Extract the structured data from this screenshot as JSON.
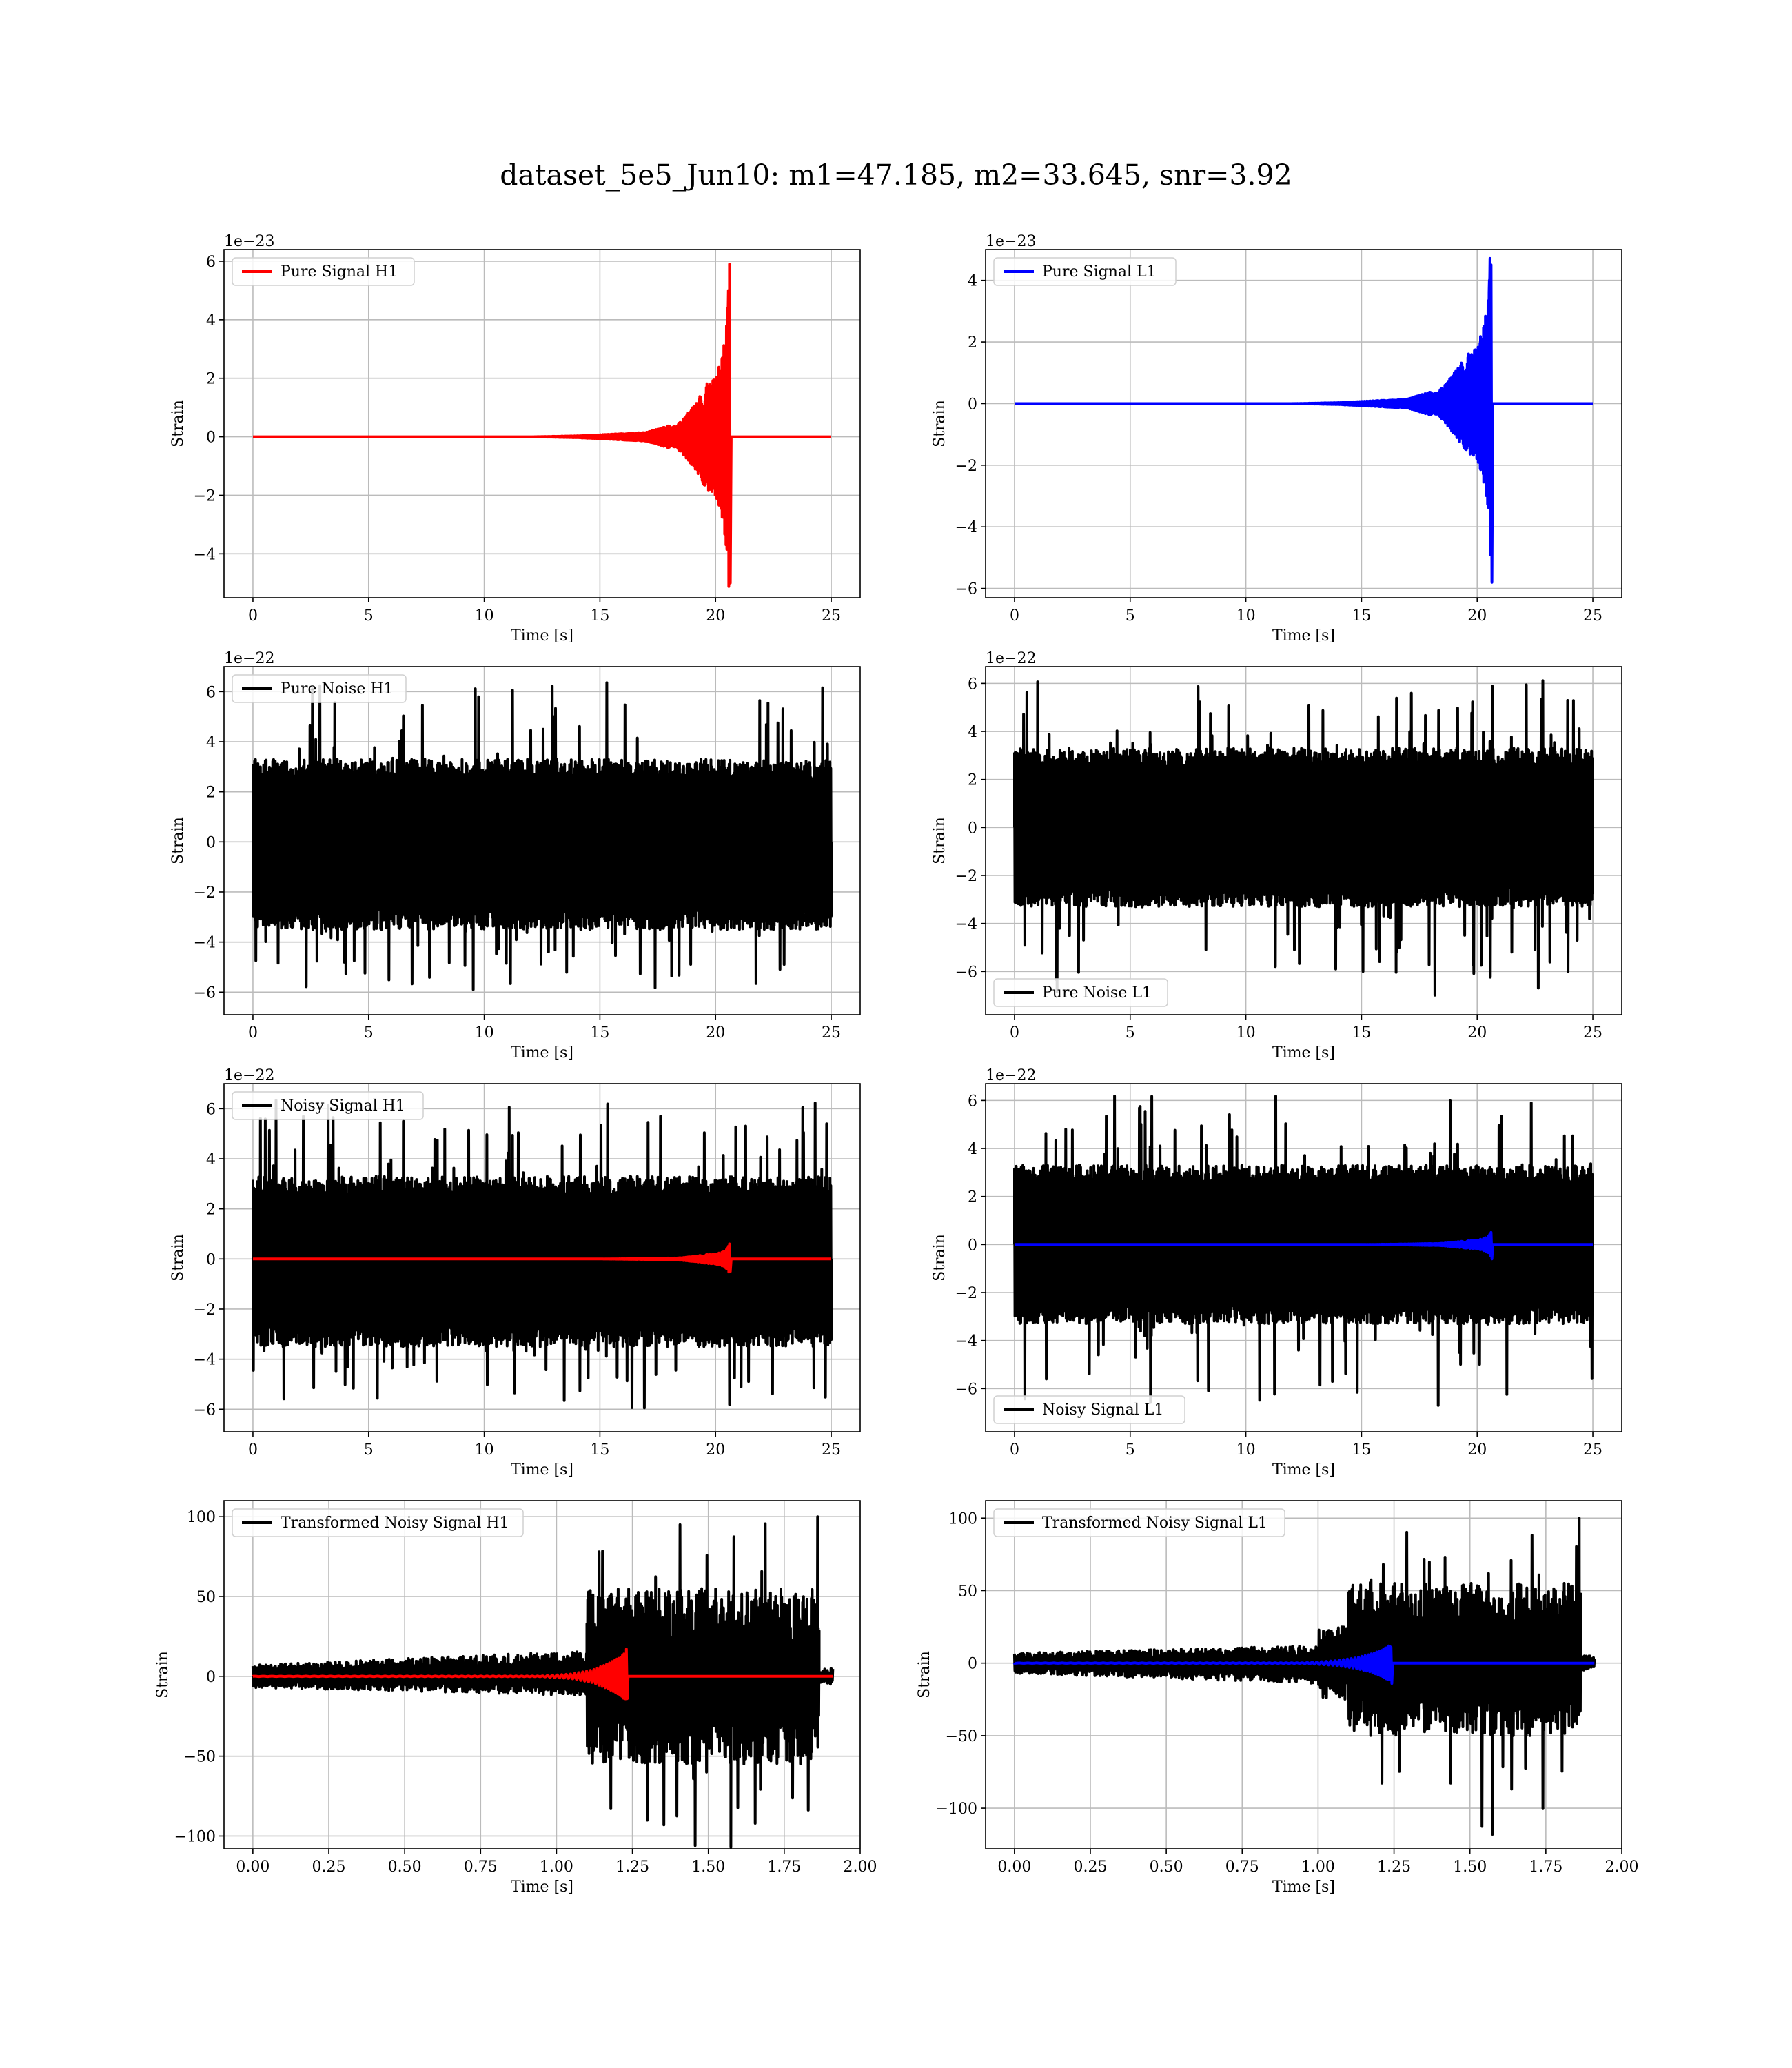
{
  "figure": {
    "suptitle": "dataset_5e5_Jun10: m1=47.185, m2=33.645, snr=3.92"
  },
  "chart_data": [
    {
      "id": "pure_signal_h1",
      "type": "line",
      "xlabel": "Time [s]",
      "ylabel": "Strain",
      "offset_text": "1e−23",
      "xlim": [
        -1.25,
        26.25
      ],
      "ylim": [
        -5.5,
        6.4
      ],
      "xticks": [
        0,
        5,
        10,
        15,
        20,
        25
      ],
      "xtick_labels": [
        "0",
        "5",
        "10",
        "15",
        "20",
        "25"
      ],
      "yticks": [
        -4,
        -2,
        0,
        2,
        4,
        6
      ],
      "ytick_labels": [
        "−4",
        "−2",
        "0",
        "2",
        "4",
        "6"
      ],
      "grid": true,
      "legend": {
        "placement": "upper left",
        "entries": [
          {
            "label": "Pure Signal H1",
            "color": "#ff0000"
          }
        ]
      },
      "series": [
        {
          "name": "Pure Signal H1",
          "color": "#ff0000",
          "kind": "chirp",
          "x_range": [
            0,
            25
          ],
          "merger": 20.6,
          "envelope_max": 5.9,
          "envelope_min": -5.0,
          "envelope": [
            [
              14,
              0.03
            ],
            [
              17,
              0.15
            ],
            [
              18.5,
              0.5
            ],
            [
              19.2,
              1.2
            ],
            [
              19.6,
              1.8
            ],
            [
              20.0,
              2.0
            ],
            [
              20.3,
              2.8
            ],
            [
              20.5,
              4.0
            ],
            [
              20.6,
              5.9
            ]
          ]
        }
      ]
    },
    {
      "id": "pure_signal_l1",
      "type": "line",
      "xlabel": "Time [s]",
      "ylabel": "Strain",
      "offset_text": "1e−23",
      "xlim": [
        -1.25,
        26.25
      ],
      "ylim": [
        -6.3,
        5.0
      ],
      "xticks": [
        0,
        5,
        10,
        15,
        20,
        25
      ],
      "xtick_labels": [
        "0",
        "5",
        "10",
        "15",
        "20",
        "25"
      ],
      "yticks": [
        -6,
        -4,
        -2,
        0,
        2,
        4
      ],
      "ytick_labels": [
        "−6",
        "−4",
        "−2",
        "0",
        "2",
        "4"
      ],
      "grid": true,
      "legend": {
        "placement": "upper left",
        "entries": [
          {
            "label": "Pure Signal L1",
            "color": "#0000ff"
          }
        ]
      },
      "series": [
        {
          "name": "Pure Signal L1",
          "color": "#0000ff",
          "kind": "chirp",
          "x_range": [
            0,
            25
          ],
          "merger": 20.6,
          "envelope_max": 4.5,
          "envelope_min": -5.8,
          "envelope": [
            [
              14,
              0.03
            ],
            [
              17,
              0.15
            ],
            [
              18.5,
              0.5
            ],
            [
              19.2,
              1.2
            ],
            [
              19.6,
              1.6
            ],
            [
              20.0,
              1.8
            ],
            [
              20.3,
              2.6
            ],
            [
              20.5,
              3.5
            ],
            [
              20.6,
              5.8
            ]
          ]
        }
      ]
    },
    {
      "id": "pure_noise_h1",
      "type": "line",
      "xlabel": "Time [s]",
      "ylabel": "Strain",
      "offset_text": "1e−22",
      "xlim": [
        -1.25,
        26.25
      ],
      "ylim": [
        -6.9,
        7.0
      ],
      "xticks": [
        0,
        5,
        10,
        15,
        20,
        25
      ],
      "xtick_labels": [
        "0",
        "5",
        "10",
        "15",
        "20",
        "25"
      ],
      "yticks": [
        -6,
        -4,
        -2,
        0,
        2,
        4,
        6
      ],
      "ytick_labels": [
        "−6",
        "−4",
        "−2",
        "0",
        "2",
        "4",
        "6"
      ],
      "grid": true,
      "legend": {
        "placement": "upper left",
        "entries": [
          {
            "label": "Pure Noise H1",
            "color": "#000000"
          }
        ]
      },
      "series": [
        {
          "name": "Pure Noise H1",
          "color": "#000000",
          "kind": "noise",
          "x_range": [
            0,
            25
          ],
          "band": [
            -3.5,
            3.3
          ],
          "peak_max": 6.4,
          "peak_min": -6.2
        }
      ]
    },
    {
      "id": "pure_noise_l1",
      "type": "line",
      "xlabel": "Time [s]",
      "ylabel": "Strain",
      "offset_text": "1e−22",
      "xlim": [
        -1.25,
        26.25
      ],
      "ylim": [
        -7.8,
        6.7
      ],
      "xticks": [
        0,
        5,
        10,
        15,
        20,
        25
      ],
      "xtick_labels": [
        "0",
        "5",
        "10",
        "15",
        "20",
        "25"
      ],
      "yticks": [
        -6,
        -4,
        -2,
        0,
        2,
        4,
        6
      ],
      "ytick_labels": [
        "−6",
        "−4",
        "−2",
        "0",
        "2",
        "4",
        "6"
      ],
      "grid": true,
      "legend": {
        "placement": "lower left",
        "entries": [
          {
            "label": "Pure Noise L1",
            "color": "#000000"
          }
        ]
      },
      "series": [
        {
          "name": "Pure Noise L1",
          "color": "#000000",
          "kind": "noise",
          "x_range": [
            0,
            25
          ],
          "band": [
            -3.3,
            3.3
          ],
          "peak_max": 6.2,
          "peak_min": -7.0
        }
      ]
    },
    {
      "id": "noisy_signal_h1",
      "type": "line",
      "xlabel": "Time [s]",
      "ylabel": "Strain",
      "offset_text": "1e−22",
      "xlim": [
        -1.25,
        26.25
      ],
      "ylim": [
        -6.9,
        7.0
      ],
      "xticks": [
        0,
        5,
        10,
        15,
        20,
        25
      ],
      "xtick_labels": [
        "0",
        "5",
        "10",
        "15",
        "20",
        "25"
      ],
      "yticks": [
        -6,
        -4,
        -2,
        0,
        2,
        4,
        6
      ],
      "ytick_labels": [
        "−6",
        "−4",
        "−2",
        "0",
        "2",
        "4",
        "6"
      ],
      "grid": true,
      "legend": {
        "placement": "upper left",
        "entries": [
          {
            "label": "Noisy Signal H1",
            "color": "#000000"
          }
        ]
      },
      "series": [
        {
          "name": "Noisy Signal H1",
          "color": "#000000",
          "kind": "noise",
          "x_range": [
            0,
            25
          ],
          "band": [
            -3.5,
            3.3
          ],
          "peak_max": 6.4,
          "peak_min": -6.2
        },
        {
          "color": "#ff0000",
          "kind": "chirp",
          "x_range": [
            0,
            25
          ],
          "merger": 20.6,
          "envelope_max": 0.6,
          "envelope_min": -0.5,
          "envelope": [
            [
              17,
              0.02
            ],
            [
              18.5,
              0.05
            ],
            [
              19.2,
              0.12
            ],
            [
              19.6,
              0.18
            ],
            [
              20.0,
              0.2
            ],
            [
              20.3,
              0.28
            ],
            [
              20.5,
              0.4
            ],
            [
              20.6,
              0.6
            ]
          ]
        }
      ]
    },
    {
      "id": "noisy_signal_l1",
      "type": "line",
      "xlabel": "Time [s]",
      "ylabel": "Strain",
      "offset_text": "1e−22",
      "xlim": [
        -1.25,
        26.25
      ],
      "ylim": [
        -7.8,
        6.7
      ],
      "xticks": [
        0,
        5,
        10,
        15,
        20,
        25
      ],
      "xtick_labels": [
        "0",
        "5",
        "10",
        "15",
        "20",
        "25"
      ],
      "yticks": [
        -6,
        -4,
        -2,
        0,
        2,
        4,
        6
      ],
      "ytick_labels": [
        "−6",
        "−4",
        "−2",
        "0",
        "2",
        "4",
        "6"
      ],
      "grid": true,
      "legend": {
        "placement": "lower left",
        "entries": [
          {
            "label": "Noisy Signal L1",
            "color": "#000000"
          }
        ]
      },
      "series": [
        {
          "name": "Noisy Signal L1",
          "color": "#000000",
          "kind": "noise",
          "x_range": [
            0,
            25
          ],
          "band": [
            -3.3,
            3.3
          ],
          "peak_max": 6.2,
          "peak_min": -7.0
        },
        {
          "color": "#0000ff",
          "kind": "chirp",
          "x_range": [
            0,
            25
          ],
          "merger": 20.6,
          "envelope_max": 0.5,
          "envelope_min": -0.6,
          "envelope": [
            [
              17,
              0.02
            ],
            [
              18.5,
              0.05
            ],
            [
              19.2,
              0.12
            ],
            [
              19.6,
              0.16
            ],
            [
              20.0,
              0.18
            ],
            [
              20.3,
              0.26
            ],
            [
              20.5,
              0.35
            ],
            [
              20.6,
              0.55
            ]
          ]
        }
      ]
    },
    {
      "id": "transformed_noisy_signal_h1",
      "type": "line",
      "xlabel": "Time [s]",
      "ylabel": "Strain",
      "offset_text": "",
      "xlim": [
        -0.095,
        2.0
      ],
      "ylim": [
        -108,
        110
      ],
      "xticks": [
        0.0,
        0.25,
        0.5,
        0.75,
        1.0,
        1.25,
        1.5,
        1.75,
        2.0
      ],
      "xtick_labels": [
        "0.00",
        "0.25",
        "0.50",
        "0.75",
        "1.00",
        "1.25",
        "1.50",
        "1.75",
        "2.00"
      ],
      "yticks": [
        -100,
        -50,
        0,
        50,
        100
      ],
      "ytick_labels": [
        "−100",
        "−50",
        "0",
        "50",
        "100"
      ],
      "grid": true,
      "legend": {
        "placement": "upper left",
        "entries": [
          {
            "label": "Transformed Noisy Signal H1",
            "color": "#000000"
          }
        ]
      },
      "series": [
        {
          "name": "Transformed Noisy Signal H1",
          "color": "#000000",
          "kind": "segments",
          "x_range": [
            0,
            1.91
          ],
          "segments": [
            {
              "x": [
                0.0,
                1.1
              ],
              "band": [
                -7,
                7
              ],
              "grow_to": [
                -12,
                16
              ]
            },
            {
              "x": [
                1.1,
                1.865
              ],
              "band": [
                -55,
                55
              ],
              "peak_max": 100,
              "peak_min": -107
            },
            {
              "x": [
                1.865,
                1.91
              ],
              "band": [
                -5,
                5
              ]
            }
          ]
        },
        {
          "color": "#ff0000",
          "kind": "chirp",
          "x_range": [
            0,
            1.91
          ],
          "merger": 1.23,
          "envelope_max": 17,
          "envelope_min": -14,
          "envelope": [
            [
              0.95,
              0.2
            ],
            [
              1.05,
              1.5
            ],
            [
              1.12,
              4
            ],
            [
              1.17,
              8
            ],
            [
              1.21,
              12
            ],
            [
              1.23,
              16
            ]
          ]
        }
      ]
    },
    {
      "id": "transformed_noisy_signal_l1",
      "type": "line",
      "xlabel": "Time [s]",
      "ylabel": "Strain",
      "offset_text": "",
      "xlim": [
        -0.095,
        2.0
      ],
      "ylim": [
        -128,
        112
      ],
      "xticks": [
        0.0,
        0.25,
        0.5,
        0.75,
        1.0,
        1.25,
        1.5,
        1.75,
        2.0
      ],
      "xtick_labels": [
        "0.00",
        "0.25",
        "0.50",
        "0.75",
        "1.00",
        "1.25",
        "1.50",
        "1.75",
        "2.00"
      ],
      "yticks": [
        -100,
        -50,
        0,
        50,
        100
      ],
      "ytick_labels": [
        "−100",
        "−50",
        "0",
        "50",
        "100"
      ],
      "grid": true,
      "legend": {
        "placement": "upper left",
        "entries": [
          {
            "label": "Transformed Noisy Signal L1",
            "color": "#000000"
          }
        ]
      },
      "series": [
        {
          "name": "Transformed Noisy Signal L1",
          "color": "#000000",
          "kind": "segments",
          "x_range": [
            0,
            1.91
          ],
          "segments": [
            {
              "x": [
                0.0,
                1.0
              ],
              "band": [
                -7,
                7
              ],
              "grow_to": [
                -14,
                12
              ]
            },
            {
              "x": [
                1.0,
                1.1
              ],
              "band": [
                -25,
                25
              ]
            },
            {
              "x": [
                1.1,
                1.865
              ],
              "band": [
                -50,
                55
              ],
              "peak_max": 100,
              "peak_min": -118
            },
            {
              "x": [
                1.865,
                1.91
              ],
              "band": [
                -5,
                5
              ]
            }
          ]
        },
        {
          "color": "#0000ff",
          "kind": "chirp",
          "x_range": [
            0,
            1.91
          ],
          "merger": 1.24,
          "envelope_max": 11,
          "envelope_min": -14,
          "envelope": [
            [
              0.95,
              0.2
            ],
            [
              1.05,
              1.5
            ],
            [
              1.12,
              3.5
            ],
            [
              1.17,
              6
            ],
            [
              1.21,
              9
            ],
            [
              1.24,
              13
            ]
          ]
        }
      ]
    }
  ]
}
